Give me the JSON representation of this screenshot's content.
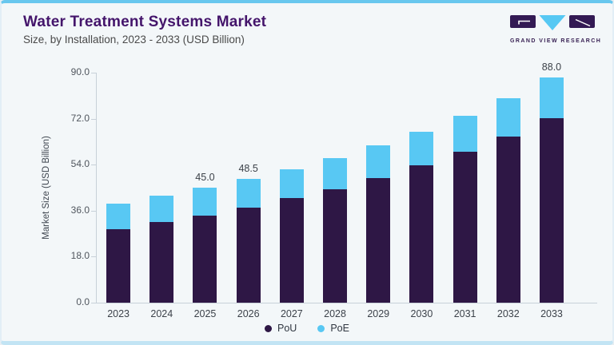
{
  "header": {
    "title": "Water Treatment Systems Market",
    "subtitle": "Size, by Installation, 2023 - 2033 (USD Billion)",
    "logo_text": "GRAND VIEW RESEARCH"
  },
  "colors": {
    "pou": "#2e1745",
    "poe": "#58c8f3",
    "title": "#44156b",
    "axis_line": "#c7d0d8",
    "border_top": "#68c7ee",
    "border_bottom": "#c2e4f4",
    "logo_purple": "#331a54",
    "logo_blue": "#56c8f3"
  },
  "chart_data": {
    "type": "bar",
    "stacked": true,
    "title": "Water Treatment Systems Market Size, by Installation, 2023 - 2033 (USD Billion)",
    "categories": [
      "2023",
      "2024",
      "2025",
      "2026",
      "2027",
      "2028",
      "2029",
      "2030",
      "2031",
      "2032",
      "2033"
    ],
    "series": [
      {
        "name": "PoU",
        "color_key": "pou",
        "values": [
          28.8,
          31.7,
          34.1,
          37.1,
          40.8,
          44.5,
          48.9,
          53.6,
          59.0,
          65.0,
          72.2
        ]
      },
      {
        "name": "PoE",
        "color_key": "poe",
        "values": [
          9.8,
          10.3,
          10.9,
          11.4,
          11.5,
          12.2,
          12.7,
          13.4,
          14.2,
          15.1,
          15.8
        ]
      }
    ],
    "totals": [
      38.6,
      42.0,
      45.0,
      48.5,
      52.3,
      56.7,
      61.6,
      67.0,
      73.2,
      80.1,
      88.0
    ],
    "bar_labels": [
      "",
      "",
      "45.0",
      "48.5",
      "",
      "",
      "",
      "",
      "",
      "",
      "88.0"
    ],
    "ylabel": "Market Size (USD Billion)",
    "yticks": [
      0,
      18,
      36,
      54,
      72,
      90
    ],
    "ytick_labels": [
      "0.0",
      "18.0",
      "36.0",
      "54.0",
      "72.0",
      "90.0"
    ],
    "ylim": [
      0,
      90
    ],
    "grid": false,
    "legend_position": "bottom"
  }
}
